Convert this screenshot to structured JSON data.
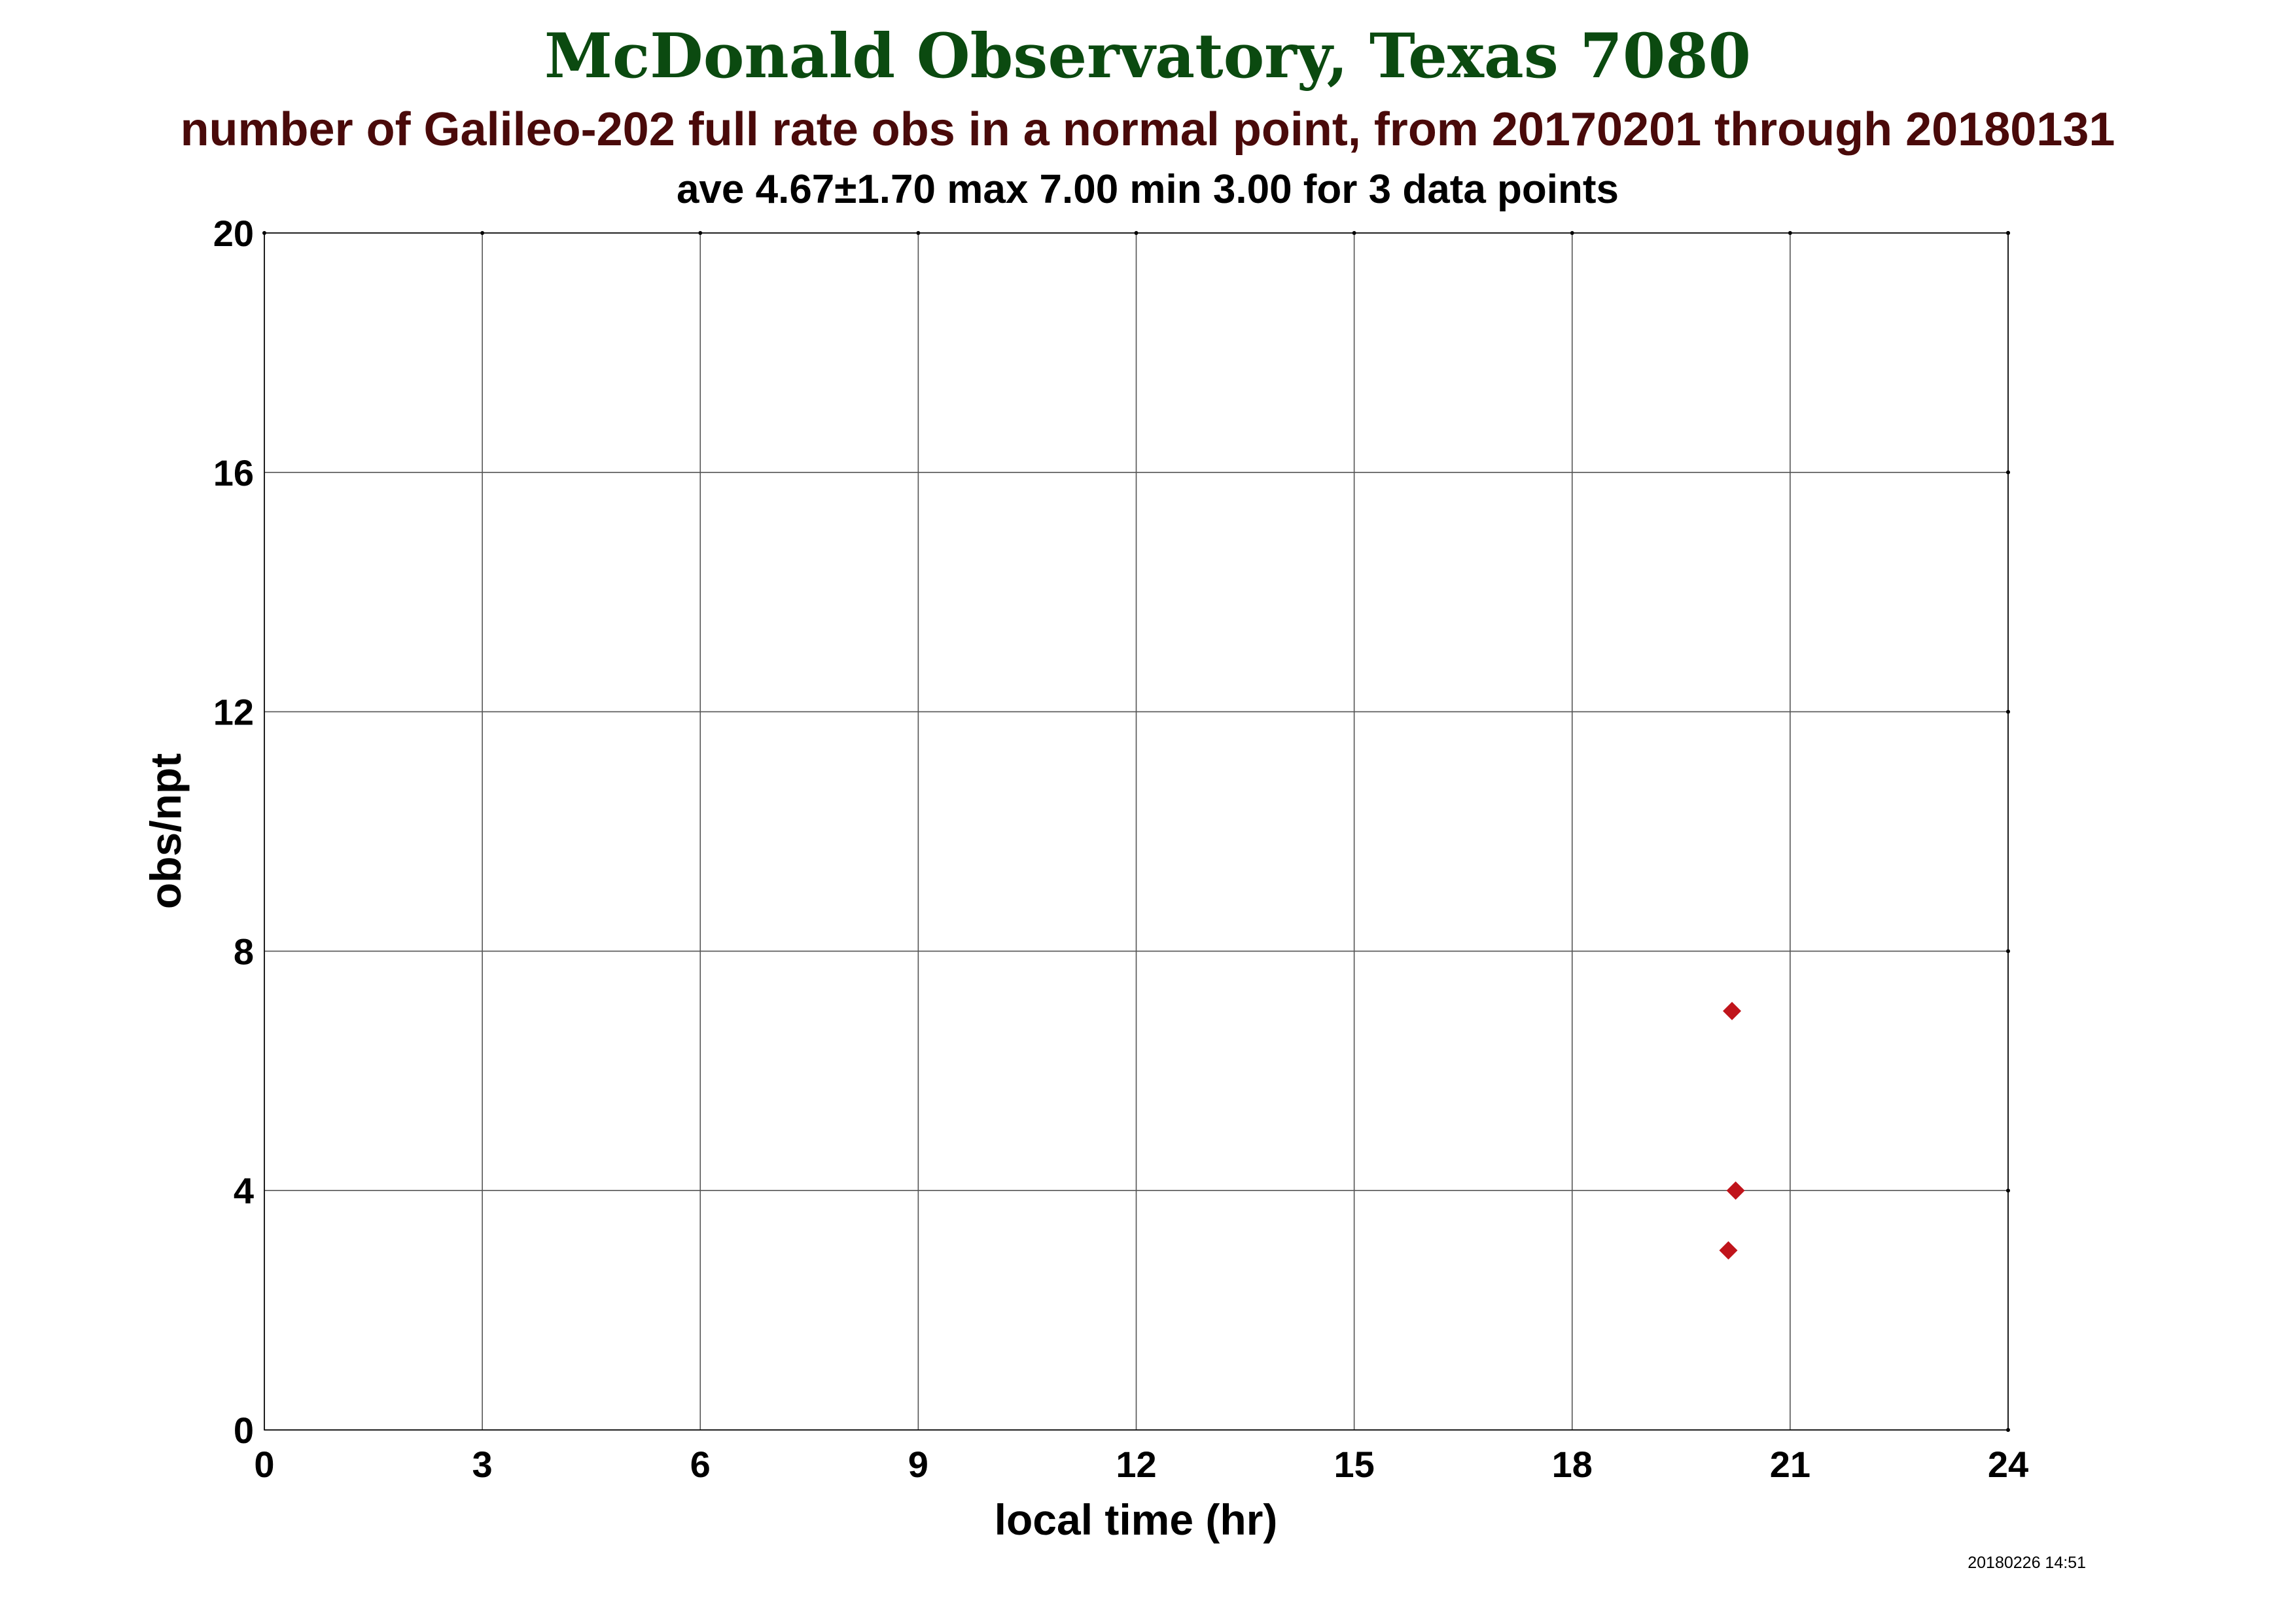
{
  "colors": {
    "title": "#0b4a10",
    "subtitle": "#4a0a0a",
    "marker": "#c0141b",
    "grid": "#555555"
  },
  "timestamp": "20180226 14:51",
  "chart_data": {
    "type": "scatter",
    "title": "McDonald Observatory, Texas 7080",
    "subtitle": "number of Galileo-202 full rate obs in a normal point, from 20170201 through 20180131",
    "stats_line": "ave 4.67±1.70 max 7.00 min 3.00 for 3 data points",
    "xlabel": "local time (hr)",
    "ylabel": "obs/npt",
    "xlim": [
      0,
      24
    ],
    "ylim": [
      0,
      20
    ],
    "xticks": [
      0,
      3,
      6,
      9,
      12,
      15,
      18,
      21,
      24
    ],
    "yticks": [
      0,
      4,
      8,
      12,
      16,
      20
    ],
    "grid": true,
    "marker": "diamond",
    "points": [
      {
        "x": 20.2,
        "y": 7
      },
      {
        "x": 20.25,
        "y": 4
      },
      {
        "x": 20.15,
        "y": 3
      }
    ]
  }
}
